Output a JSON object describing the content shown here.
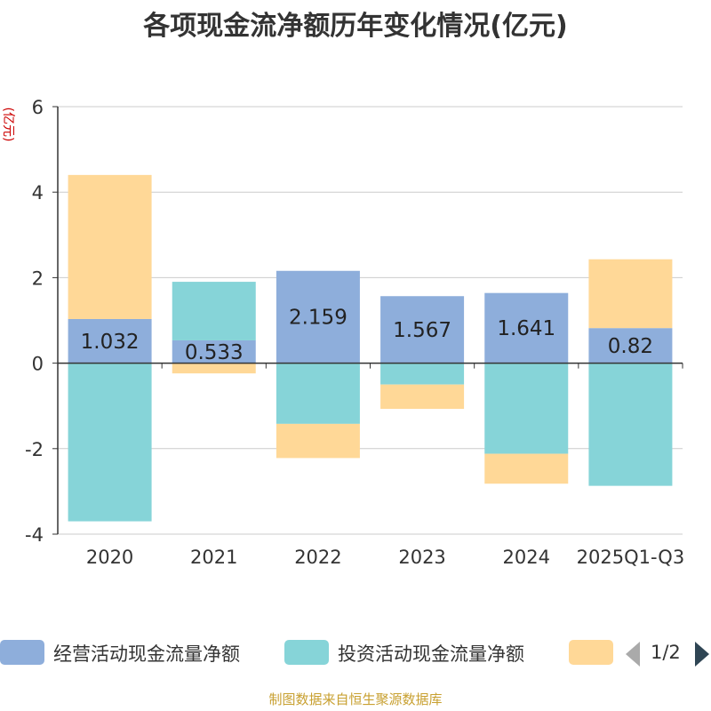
{
  "title": "各项现金流净额历年变化情况(亿元)",
  "footer": "制图数据来自恒生聚源数据库",
  "pager": {
    "text": "1/2"
  },
  "chart_data": {
    "type": "bar",
    "stacked": true,
    "categories": [
      "2020",
      "2021",
      "2022",
      "2023",
      "2024",
      "2025Q1-Q3"
    ],
    "ylabel": "(亿元)",
    "ylim": [
      -4,
      6
    ],
    "yticks": [
      -4,
      -2,
      0,
      2,
      4,
      6
    ],
    "series": [
      {
        "name": "经营活动现金流量净额",
        "color": "#8eaedb",
        "values": [
          1.032,
          0.533,
          2.159,
          1.567,
          1.641,
          0.82
        ],
        "labels": [
          "1.032",
          "0.533",
          "2.159",
          "1.567",
          "1.641",
          "0.82"
        ]
      },
      {
        "name": "投资活动现金流量净额",
        "color": "#86d4d8",
        "values": [
          -3.7,
          1.37,
          -1.42,
          -0.5,
          -2.12,
          -2.87
        ]
      },
      {
        "name": "",
        "color": "#ffd897",
        "values": [
          3.37,
          -0.24,
          -0.8,
          -0.57,
          -0.7,
          1.61
        ]
      }
    ]
  }
}
